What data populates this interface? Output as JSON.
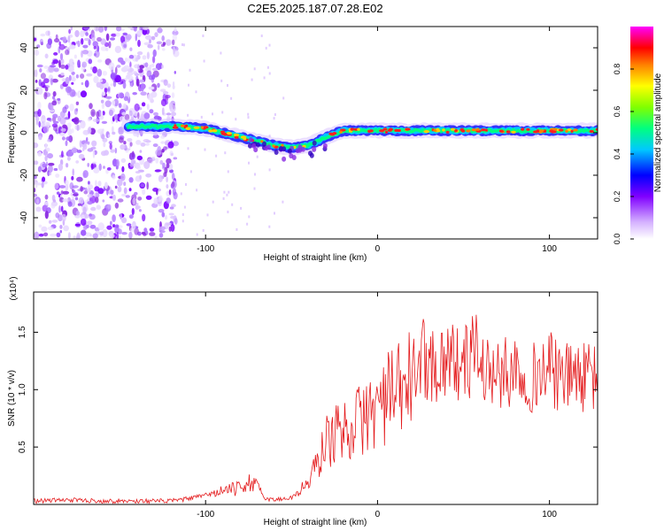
{
  "title": "C2E5.2025.187.07.28.E02",
  "chart_data": [
    {
      "type": "heatmap",
      "xlabel": "Height of straight line (km)",
      "ylabel": "Frequency (Hz)",
      "xlim": [
        -200,
        128
      ],
      "ylim": [
        -50,
        50
      ],
      "xticks": [
        -100,
        0,
        100
      ],
      "yticks": [
        -40,
        -20,
        0,
        20,
        40
      ],
      "colorbar": {
        "label": "Normalized spectral amplitude",
        "range": [
          0,
          1
        ],
        "ticks": [
          "0.0",
          "0.2",
          "0.4",
          "0.6",
          "0.8"
        ],
        "colors": [
          "#ffffff",
          "#d4b0ff",
          "#8000ff",
          "#0000ff",
          "#00c8ff",
          "#00ff80",
          "#80ff00",
          "#ffff00",
          "#ff8000",
          "#ff0000",
          "#ff00ff"
        ]
      },
      "ridge": {
        "description_x": [
          -145,
          -130,
          -115,
          -100,
          -85,
          -70,
          -60,
          -50,
          -40,
          -30,
          -20,
          -10,
          0,
          20,
          40,
          60,
          80,
          100,
          128
        ],
        "frequency": [
          3,
          3,
          3,
          2,
          -1,
          -4,
          -6,
          -7,
          -6,
          -2,
          1,
          1,
          1,
          1,
          1,
          1,
          1,
          1,
          1
        ]
      }
    },
    {
      "type": "line",
      "xlabel": "Height of straight line (km)",
      "ylabel": "SNR (10 * v/v)",
      "multiplier": "(x10⁴)",
      "xlim": [
        -200,
        128
      ],
      "ylim": [
        0,
        1.85
      ],
      "xticks": [
        -100,
        0,
        100
      ],
      "yticks": [
        "0.5",
        "1.0",
        "1.5"
      ],
      "color": "#e41a1c",
      "series": [
        {
          "x": [
            -200,
            -180,
            -160,
            -140,
            -120,
            -110,
            -100,
            -90,
            -80,
            -75,
            -70,
            -65,
            -60,
            -55,
            -50,
            -45,
            -40,
            -35,
            -30,
            -25,
            -20,
            -15,
            -10,
            -5,
            0,
            5,
            10,
            15,
            20,
            25,
            30,
            35,
            40,
            45,
            50,
            55,
            57,
            60,
            65,
            70,
            75,
            80,
            85,
            90,
            95,
            100,
            105,
            110,
            115,
            120,
            128
          ],
          "values": [
            0.03,
            0.04,
            0.03,
            0.03,
            0.03,
            0.05,
            0.08,
            0.12,
            0.14,
            0.2,
            0.15,
            0.05,
            0.04,
            0.05,
            0.06,
            0.12,
            0.2,
            0.35,
            0.55,
            0.6,
            0.65,
            0.7,
            0.72,
            0.8,
            0.85,
            0.92,
            0.95,
            1.0,
            1.1,
            1.3,
            1.25,
            1.2,
            1.3,
            1.25,
            1.2,
            1.3,
            1.5,
            1.15,
            1.2,
            1.1,
            1.15,
            1.2,
            1.15,
            1.1,
            1.15,
            1.2,
            1.1,
            1.1,
            1.15,
            1.1,
            1.1
          ]
        }
      ]
    }
  ]
}
